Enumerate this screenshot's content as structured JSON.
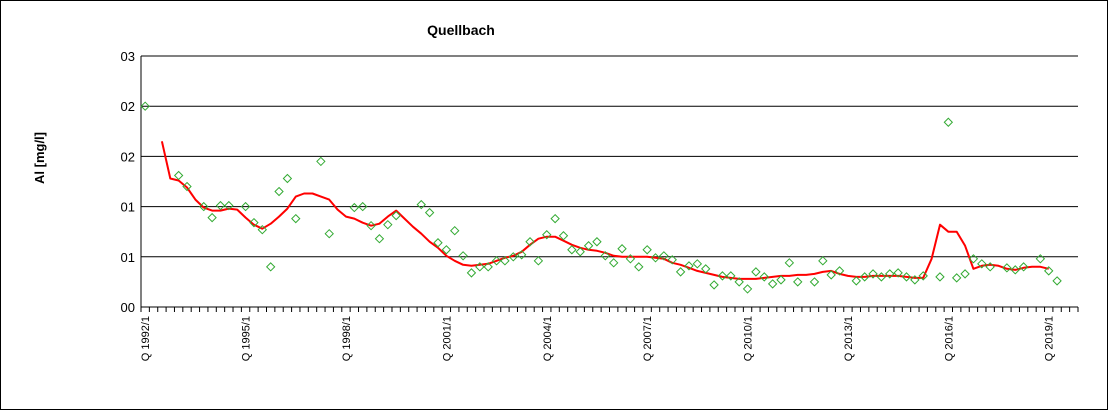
{
  "chart_data": {
    "type": "line",
    "title": "Quellbach",
    "ylabel": "Al [mg/l]",
    "xlabel": "",
    "y_ticks": [
      "00",
      "01",
      "01",
      "02",
      "02",
      "03"
    ],
    "y_tick_values": [
      0,
      0.05,
      0.1,
      0.15,
      0.2,
      0.25
    ],
    "ylim": [
      0,
      0.25
    ],
    "grid": true,
    "x_categories_start": "1992/1",
    "x_categories_count": 112,
    "x_tick_labels": [
      {
        "index": 0,
        "label": "Q 1992/1"
      },
      {
        "index": 12,
        "label": "Q 1995/1"
      },
      {
        "index": 24,
        "label": "Q 1998/1"
      },
      {
        "index": 36,
        "label": "Q 2001/1"
      },
      {
        "index": 48,
        "label": "Q 2004/1"
      },
      {
        "index": 60,
        "label": "Q 2007/1"
      },
      {
        "index": 72,
        "label": "Q 2010/1"
      },
      {
        "index": 84,
        "label": "Q 2013/1"
      },
      {
        "index": 96,
        "label": "Q 2016/1"
      },
      {
        "index": 108,
        "label": "Q 2019/1"
      }
    ],
    "colors": {
      "measured": "#33aa33",
      "trend": "#ff0000",
      "grid": "#000000"
    },
    "series": [
      {
        "marker": "diamond",
        "points": [
          [
            0,
            0.2
          ],
          [
            4,
            0.131
          ],
          [
            5,
            0.12
          ],
          [
            7,
            0.1
          ],
          [
            8,
            0.089
          ],
          [
            9,
            0.101
          ],
          [
            10,
            0.101
          ],
          [
            12,
            0.1
          ],
          [
            13,
            0.084
          ],
          [
            14,
            0.077
          ],
          [
            15,
            0.04
          ],
          [
            16,
            0.115
          ],
          [
            17,
            0.128
          ],
          [
            18,
            0.088
          ],
          [
            21,
            0.145
          ],
          [
            22,
            0.073
          ],
          [
            25,
            0.099
          ],
          [
            26,
            0.1
          ],
          [
            27,
            0.081
          ],
          [
            28,
            0.068
          ],
          [
            29,
            0.082
          ],
          [
            30,
            0.091
          ],
          [
            33,
            0.102
          ],
          [
            34,
            0.094
          ],
          [
            35,
            0.064
          ],
          [
            36,
            0.057
          ],
          [
            37,
            0.076
          ],
          [
            38,
            0.051
          ],
          [
            39,
            0.034
          ],
          [
            40,
            0.04
          ],
          [
            41,
            0.04
          ],
          [
            42,
            0.046
          ],
          [
            43,
            0.046
          ],
          [
            44,
            0.05
          ],
          [
            45,
            0.052
          ],
          [
            46,
            0.065
          ],
          [
            47,
            0.046
          ],
          [
            48,
            0.072
          ],
          [
            49,
            0.088
          ],
          [
            50,
            0.071
          ],
          [
            51,
            0.057
          ],
          [
            52,
            0.055
          ],
          [
            53,
            0.061
          ],
          [
            54,
            0.065
          ],
          [
            55,
            0.051
          ],
          [
            56,
            0.044
          ],
          [
            57,
            0.058
          ],
          [
            58,
            0.048
          ],
          [
            59,
            0.04
          ],
          [
            60,
            0.057
          ],
          [
            61,
            0.049
          ],
          [
            62,
            0.051
          ],
          [
            63,
            0.047
          ],
          [
            64,
            0.035
          ],
          [
            65,
            0.041
          ],
          [
            66,
            0.043
          ],
          [
            67,
            0.038
          ],
          [
            68,
            0.022
          ],
          [
            69,
            0.031
          ],
          [
            70,
            0.031
          ],
          [
            71,
            0.025
          ],
          [
            72,
            0.018
          ],
          [
            73,
            0.035
          ],
          [
            74,
            0.03
          ],
          [
            75,
            0.023
          ],
          [
            76,
            0.027
          ],
          [
            77,
            0.044
          ],
          [
            78,
            0.025
          ],
          [
            80,
            0.025
          ],
          [
            81,
            0.046
          ],
          [
            82,
            0.032
          ],
          [
            83,
            0.036
          ],
          [
            85,
            0.026
          ],
          [
            86,
            0.03
          ],
          [
            87,
            0.033
          ],
          [
            88,
            0.03
          ],
          [
            89,
            0.033
          ],
          [
            90,
            0.034
          ],
          [
            91,
            0.03
          ],
          [
            92,
            0.027
          ],
          [
            93,
            0.031
          ],
          [
            95,
            0.03
          ],
          [
            96,
            0.184
          ],
          [
            97,
            0.029
          ],
          [
            98,
            0.033
          ],
          [
            99,
            0.048
          ],
          [
            100,
            0.043
          ],
          [
            101,
            0.04
          ],
          [
            103,
            0.039
          ],
          [
            104,
            0.037
          ],
          [
            105,
            0.04
          ],
          [
            107,
            0.048
          ],
          [
            108,
            0.036
          ],
          [
            109,
            0.026
          ]
        ]
      },
      {
        "marker": "none",
        "points": [
          [
            2,
            0.165
          ],
          [
            3,
            0.128
          ],
          [
            4,
            0.126
          ],
          [
            5,
            0.119
          ],
          [
            6,
            0.107
          ],
          [
            7,
            0.099
          ],
          [
            8,
            0.096
          ],
          [
            9,
            0.096
          ],
          [
            10,
            0.098
          ],
          [
            11,
            0.097
          ],
          [
            12,
            0.089
          ],
          [
            13,
            0.082
          ],
          [
            14,
            0.078
          ],
          [
            15,
            0.083
          ],
          [
            16,
            0.09
          ],
          [
            17,
            0.098
          ],
          [
            18,
            0.11
          ],
          [
            19,
            0.113
          ],
          [
            20,
            0.113
          ],
          [
            21,
            0.11
          ],
          [
            22,
            0.107
          ],
          [
            23,
            0.097
          ],
          [
            24,
            0.09
          ],
          [
            25,
            0.088
          ],
          [
            26,
            0.084
          ],
          [
            27,
            0.081
          ],
          [
            28,
            0.083
          ],
          [
            29,
            0.09
          ],
          [
            30,
            0.096
          ],
          [
            31,
            0.088
          ],
          [
            32,
            0.08
          ],
          [
            33,
            0.073
          ],
          [
            34,
            0.065
          ],
          [
            35,
            0.059
          ],
          [
            36,
            0.051
          ],
          [
            37,
            0.046
          ],
          [
            38,
            0.042
          ],
          [
            39,
            0.041
          ],
          [
            40,
            0.042
          ],
          [
            41,
            0.043
          ],
          [
            42,
            0.046
          ],
          [
            43,
            0.049
          ],
          [
            44,
            0.051
          ],
          [
            45,
            0.055
          ],
          [
            46,
            0.062
          ],
          [
            47,
            0.068
          ],
          [
            48,
            0.07
          ],
          [
            49,
            0.07
          ],
          [
            50,
            0.066
          ],
          [
            51,
            0.062
          ],
          [
            52,
            0.059
          ],
          [
            53,
            0.057
          ],
          [
            54,
            0.056
          ],
          [
            55,
            0.054
          ],
          [
            56,
            0.051
          ],
          [
            57,
            0.05
          ],
          [
            58,
            0.05
          ],
          [
            59,
            0.05
          ],
          [
            60,
            0.05
          ],
          [
            61,
            0.049
          ],
          [
            62,
            0.048
          ],
          [
            63,
            0.044
          ],
          [
            64,
            0.042
          ],
          [
            65,
            0.039
          ],
          [
            66,
            0.036
          ],
          [
            67,
            0.034
          ],
          [
            68,
            0.032
          ],
          [
            69,
            0.03
          ],
          [
            70,
            0.029
          ],
          [
            71,
            0.028
          ],
          [
            72,
            0.028
          ],
          [
            73,
            0.028
          ],
          [
            74,
            0.029
          ],
          [
            75,
            0.03
          ],
          [
            76,
            0.031
          ],
          [
            77,
            0.031
          ],
          [
            78,
            0.032
          ],
          [
            79,
            0.032
          ],
          [
            80,
            0.033
          ],
          [
            81,
            0.035
          ],
          [
            82,
            0.036
          ],
          [
            83,
            0.033
          ],
          [
            84,
            0.031
          ],
          [
            85,
            0.03
          ],
          [
            86,
            0.03
          ],
          [
            87,
            0.031
          ],
          [
            88,
            0.031
          ],
          [
            89,
            0.031
          ],
          [
            90,
            0.031
          ],
          [
            91,
            0.03
          ],
          [
            92,
            0.029
          ],
          [
            93,
            0.029
          ],
          [
            94,
            0.048
          ],
          [
            95,
            0.082
          ],
          [
            96,
            0.075
          ],
          [
            97,
            0.075
          ],
          [
            98,
            0.061
          ],
          [
            99,
            0.038
          ],
          [
            100,
            0.041
          ],
          [
            101,
            0.042
          ],
          [
            102,
            0.041
          ],
          [
            103,
            0.038
          ],
          [
            104,
            0.037
          ],
          [
            105,
            0.039
          ],
          [
            106,
            0.04
          ],
          [
            107,
            0.04
          ],
          [
            108,
            0.038
          ]
        ]
      }
    ]
  }
}
